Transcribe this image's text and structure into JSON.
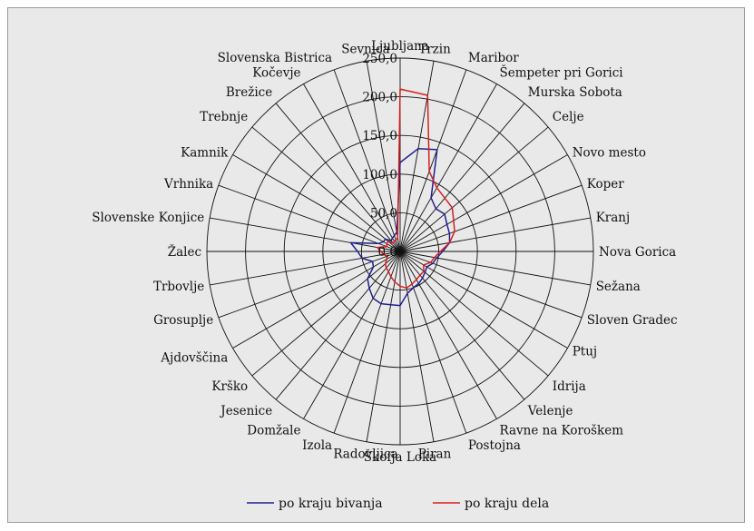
{
  "chart_data": {
    "type": "radar",
    "title": "",
    "categories": [
      "Ljubljana",
      "Trzin",
      "Maribor",
      "Šempeter pri Gorici",
      "Murska Sobota",
      "Celje",
      "Novo mesto",
      "Koper",
      "Kranj",
      "Nova Gorica",
      "Sežana",
      "Sloven Gradec",
      "Ptuj",
      "Idrija",
      "Velenje",
      "Ravne na Koroškem",
      "Postojna",
      "Piran",
      "Škofja Loka",
      "Radovljica",
      "Izola",
      "Domžale",
      "Jesenice",
      "Krško",
      "Ajdovščina",
      "Grosuplje",
      "Trbovlje",
      "Žalec",
      "Slovenske Konjice",
      "Vrhnika",
      "Kamnik",
      "Trebnje",
      "Brežice",
      "Kočevje",
      "Slovenska Bistrica",
      "Sevnica"
    ],
    "rlim": [
      0,
      250
    ],
    "ticks": [
      "0,0",
      "50,0",
      "100,0",
      "150,0",
      "200,0",
      "250,0"
    ],
    "tick_values": [
      0,
      50,
      100,
      150,
      200,
      250
    ],
    "grid": true,
    "legend_position": "bottom",
    "series": [
      {
        "name": "po kraju bivanja",
        "color": "#1f1f8f",
        "values": [
          115,
          135,
          140,
          80,
          72,
          75,
          70,
          68,
          65,
          55,
          48,
          45,
          40,
          42,
          45,
          48,
          50,
          55,
          70,
          70,
          72,
          70,
          62,
          55,
          40,
          38,
          50,
          55,
          65,
          30,
          25,
          25,
          18,
          20,
          22,
          25
        ]
      },
      {
        "name": "po kraju dela",
        "color": "#d81e1e",
        "values": [
          210,
          205,
          110,
          95,
          90,
          88,
          80,
          75,
          65,
          52,
          45,
          42,
          35,
          40,
          40,
          42,
          45,
          48,
          45,
          40,
          35,
          30,
          28,
          25,
          20,
          18,
          22,
          25,
          30,
          18,
          20,
          20,
          14,
          15,
          16,
          18
        ]
      }
    ]
  }
}
